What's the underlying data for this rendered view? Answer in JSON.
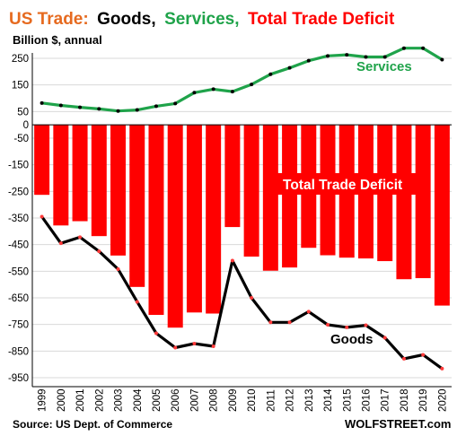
{
  "title": {
    "part1": "US Trade:",
    "part2": "Goods,",
    "part3": "Services,",
    "part4": "Total Trade Deficit"
  },
  "subtitle": "Billion $, annual",
  "source": "Source: US Dept. of Commerce",
  "brand": "WOLFSTREET.com",
  "colors": {
    "title_orange": "#e66a1f",
    "services": "#1fa34a",
    "deficit": "#ff0000",
    "goods": "#000000",
    "deficit_label_bg": "#ff0000"
  },
  "chart_data": {
    "type": "bar+line",
    "x": [
      "1999",
      "2000",
      "2001",
      "2002",
      "2003",
      "2004",
      "2005",
      "2006",
      "2007",
      "2008",
      "2009",
      "2010",
      "2011",
      "2012",
      "2013",
      "2014",
      "2015",
      "2016",
      "2017",
      "2018",
      "2019",
      "2020"
    ],
    "ylim": [
      -980,
      300
    ],
    "yticks": [
      250,
      150,
      50,
      0,
      -50,
      -150,
      -250,
      -350,
      -450,
      -550,
      -650,
      -750,
      -850,
      -950
    ],
    "series": [
      {
        "name": "Total Trade Deficit",
        "type": "bar",
        "values": [
          -263,
          -378,
          -362,
          -418,
          -491,
          -609,
          -714,
          -762,
          -705,
          -709,
          -384,
          -495,
          -548,
          -536,
          -462,
          -490,
          -499,
          -502,
          -512,
          -580,
          -576,
          -679
        ]
      },
      {
        "name": "Services",
        "type": "line",
        "values": [
          82,
          73,
          66,
          60,
          52,
          56,
          70,
          80,
          121,
          134,
          125,
          152,
          190,
          214,
          241,
          259,
          263,
          255,
          255,
          288,
          288,
          245
        ]
      },
      {
        "name": "Goods",
        "type": "line",
        "values": [
          -345,
          -445,
          -422,
          -475,
          -542,
          -665,
          -783,
          -837,
          -822,
          -832,
          -510,
          -650,
          -742,
          -742,
          -702,
          -751,
          -761,
          -753,
          -800,
          -879,
          -864,
          -916
        ]
      }
    ],
    "labels": {
      "services": "Services",
      "goods": "Goods",
      "deficit": "Total Trade Deficit"
    }
  }
}
